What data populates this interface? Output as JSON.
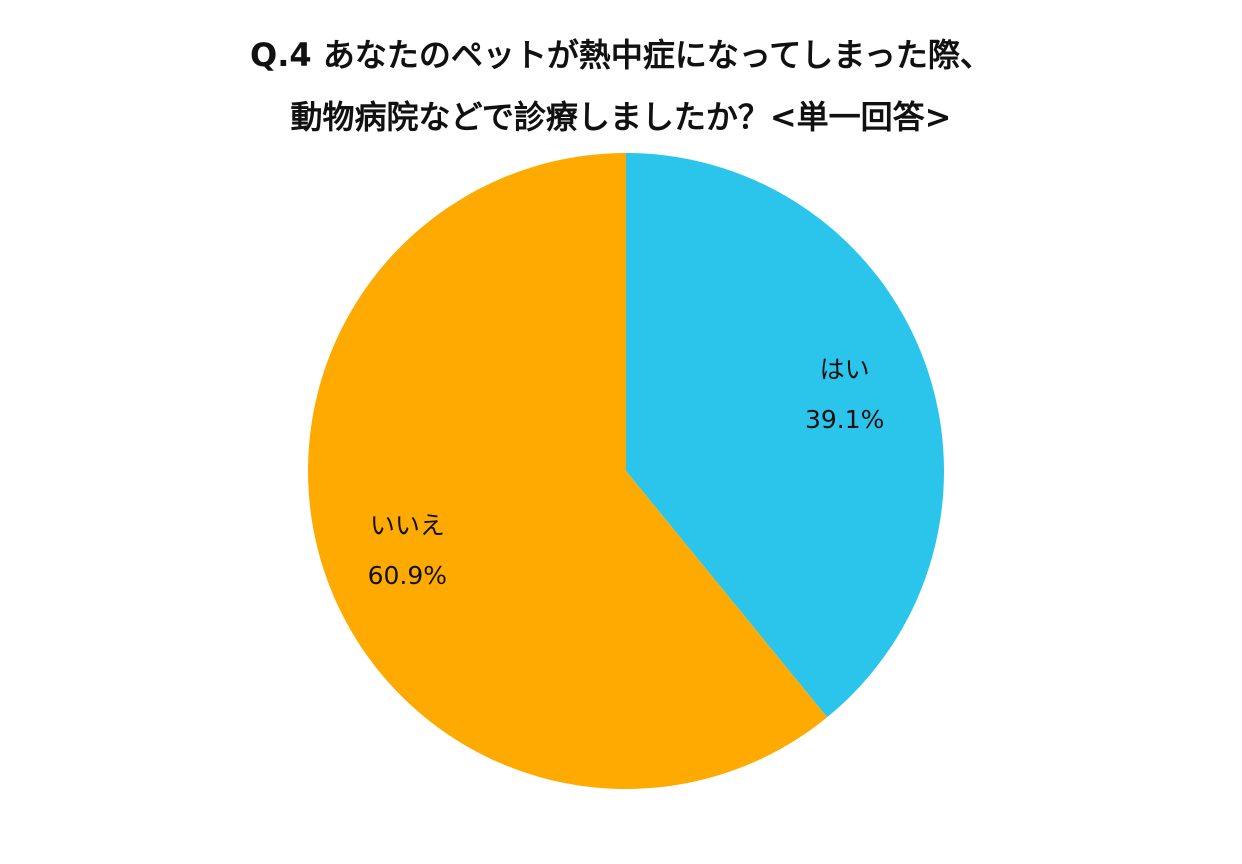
{
  "chart_data": {
    "type": "pie",
    "title_lines": [
      "Q.4 あなたのペットが熱中症になってしまった際、",
      "動物病院などで診療しましたか？<単一回答>"
    ],
    "slices": [
      {
        "label": "はい",
        "value": 39.1,
        "display": "39.1%",
        "color": "#2bc5eb"
      },
      {
        "label": "いいえ",
        "value": 60.9,
        "display": "60.9%",
        "color": "#ffaa00"
      }
    ],
    "start": "12 o'clock",
    "direction": "clockwise",
    "legend": "none"
  }
}
